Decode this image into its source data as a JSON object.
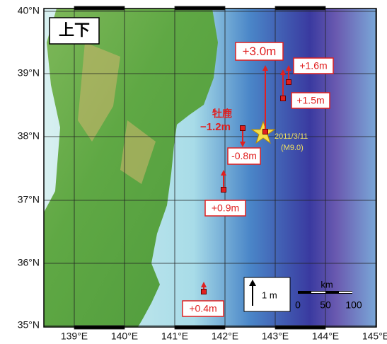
{
  "map": {
    "title": "上下",
    "lat_labels": [
      "40°N",
      "39°N",
      "38°N",
      "37°N",
      "36°N",
      "35°N"
    ],
    "lon_labels": [
      "139°E",
      "140°E",
      "141°E",
      "142°E",
      "143°E",
      "144°E",
      "145°E"
    ],
    "place": "牡鹿",
    "epicenter": {
      "date": "2011/3/11",
      "magnitude": "(M9.0)"
    },
    "stations": [
      {
        "label": "+3.0m"
      },
      {
        "label": "+1.6m"
      },
      {
        "label": "+1.5m"
      },
      {
        "label": "−1.2m"
      },
      {
        "label": "-0.8m"
      },
      {
        "label": "+0.9m"
      },
      {
        "label": "+0.4m"
      }
    ],
    "legend": {
      "arrow": "1 m",
      "scale_title": "km",
      "scale_ticks": [
        "0",
        "50",
        "100"
      ]
    }
  }
}
